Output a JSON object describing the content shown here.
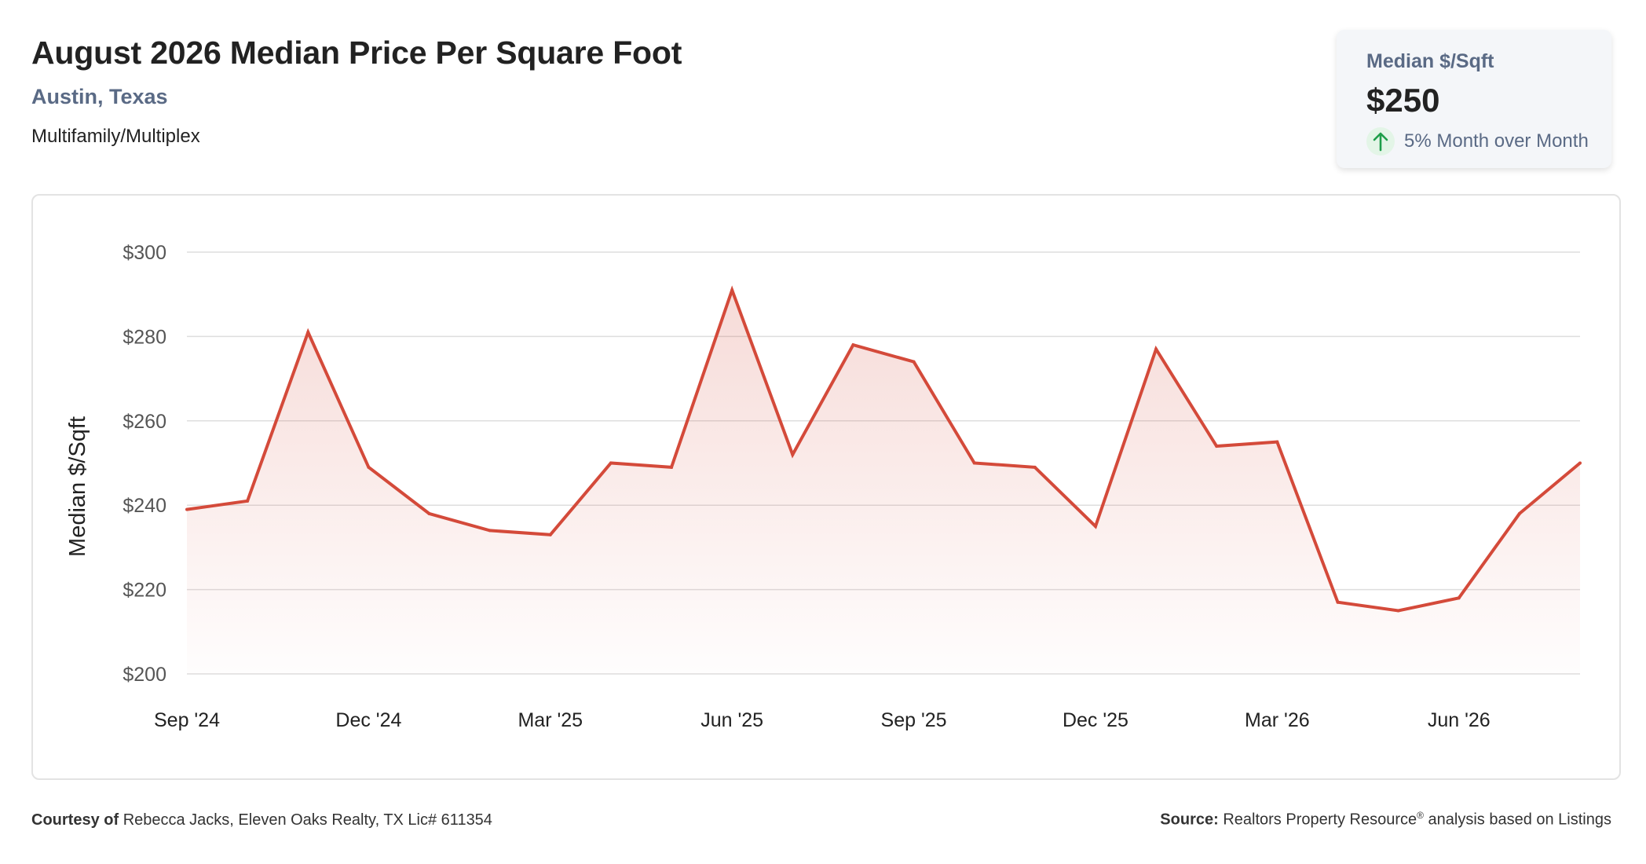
{
  "header": {
    "title": "August 2026 Median Price Per Square Foot",
    "location": "Austin, Texas",
    "property_type": "Multifamily/Multiplex"
  },
  "stat_card": {
    "label": "Median $/Sqft",
    "value": "$250",
    "change": "5% Month over Month",
    "trend_icon": "arrow-up-icon",
    "trend_color": "#1e9e4a"
  },
  "chart_data": {
    "type": "area",
    "ylabel": "Median $/Sqft",
    "ylim": [
      200,
      300
    ],
    "y_ticks": [
      "$300",
      "$280",
      "$260",
      "$240",
      "$220",
      "$200"
    ],
    "y_tick_values": [
      300,
      280,
      260,
      240,
      220,
      200
    ],
    "x_tick_labels": [
      "Sep '24",
      "Dec '24",
      "Mar '25",
      "Jun '25",
      "Sep '25",
      "Dec '25",
      "Mar '26",
      "Jun '26"
    ],
    "x_tick_indices": [
      0,
      3,
      6,
      9,
      12,
      15,
      18,
      21
    ],
    "categories": [
      "Sep '24",
      "Oct '24",
      "Nov '24",
      "Dec '24",
      "Jan '25",
      "Feb '25",
      "Mar '25",
      "Apr '25",
      "May '25",
      "Jun '25",
      "Jul '25",
      "Aug '25",
      "Sep '25",
      "Oct '25",
      "Nov '25",
      "Dec '25",
      "Jan '26",
      "Feb '26",
      "Mar '26",
      "Apr '26",
      "May '26",
      "Jun '26",
      "Jul '26",
      "Aug '26"
    ],
    "values": [
      239,
      241,
      281,
      249,
      238,
      234,
      233,
      250,
      249,
      291,
      252,
      278,
      274,
      250,
      249,
      235,
      277,
      254,
      255,
      217,
      215,
      218,
      238,
      250
    ],
    "line_color": "#d44a3a",
    "grid": true
  },
  "footer": {
    "courtesy_label": "Courtesy of",
    "courtesy_text": "Rebecca Jacks, Eleven Oaks Realty, TX Lic# 611354",
    "source_label": "Source:",
    "source_text_1": "Realtors Property Resource",
    "source_reg": "®",
    "source_text_2": " analysis based on Listings"
  }
}
